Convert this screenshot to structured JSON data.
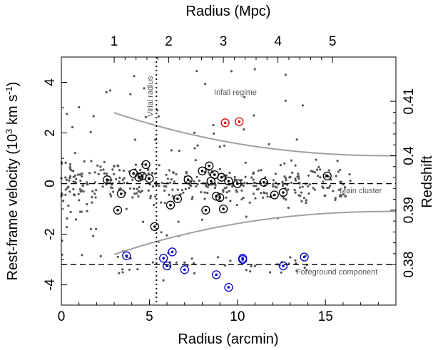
{
  "chart_data": {
    "type": "scatter",
    "title": "",
    "xlabel": "Radius (arcmin)",
    "ylabel_prefix": "Rest-frame velocity (10",
    "ylabel_sup1": "3",
    "ylabel_mid": " km s",
    "ylabel_sup2": "-1",
    "ylabel_suffix": ")",
    "ylabel_right": "Redshift",
    "xlabel_top": "Radius (Mpc)",
    "xlim": [
      0,
      19
    ],
    "ylim": [
      -4.8,
      5.0
    ],
    "x_ticks": [
      0,
      5,
      10,
      15
    ],
    "y_ticks": [
      -4,
      -2,
      0,
      2,
      4
    ],
    "top_ticks": [
      {
        "label": "1",
        "x": 3.0
      },
      {
        "label": "2",
        "x": 6.1
      },
      {
        "label": "3",
        "x": 9.2
      },
      {
        "label": "4",
        "x": 12.3
      },
      {
        "label": "5",
        "x": 15.4
      }
    ],
    "right_ticks": [
      {
        "label": "0.38",
        "y": -3.2
      },
      {
        "label": "0.39",
        "y": -1.05
      },
      {
        "label": "0.4",
        "y": 1.1
      },
      {
        "label": "0.41",
        "y": 3.25
      }
    ],
    "virial_radius": 5.4,
    "main_cluster_velocity": 0.0,
    "foreground_velocity": -3.2,
    "caustic": {
      "x_start": 3.0,
      "amplitude_at_start": 2.8,
      "amplitude_at_end": 1.1
    },
    "annotations": {
      "virial": "Virial radius",
      "infall": "Infall regime",
      "main": "Main cluster",
      "foreground": "Foreground component"
    },
    "series": [
      {
        "marker": "circled-black",
        "color": "#000000",
        "points": [
          [
            2.6,
            0.15
          ],
          [
            3.4,
            -0.4
          ],
          [
            3.2,
            -1.05
          ],
          [
            4.1,
            0.4
          ],
          [
            4.4,
            0.25
          ],
          [
            4.6,
            0.3
          ],
          [
            4.8,
            0.75
          ],
          [
            5.0,
            0.2
          ],
          [
            5.3,
            -1.7
          ],
          [
            6.2,
            -0.85
          ],
          [
            6.6,
            -0.6
          ],
          [
            7.2,
            0.15
          ],
          [
            8.0,
            0.5
          ],
          [
            8.2,
            -1.05
          ],
          [
            8.4,
            0.7
          ],
          [
            8.5,
            0.1
          ],
          [
            8.7,
            0.35
          ],
          [
            8.8,
            -0.5
          ],
          [
            9.0,
            -0.55
          ],
          [
            9.1,
            0.25
          ],
          [
            9.2,
            -1.0
          ],
          [
            9.5,
            0.1
          ],
          [
            10.0,
            0.0
          ],
          [
            11.5,
            0.05
          ],
          [
            12.1,
            -0.45
          ],
          [
            12.6,
            -0.35
          ],
          [
            15.1,
            0.3
          ]
        ]
      },
      {
        "marker": "circled-red",
        "color": "#dd0000",
        "points": [
          [
            9.3,
            2.4
          ],
          [
            10.1,
            2.45
          ]
        ]
      },
      {
        "marker": "circled-blue",
        "color": "#0000cc",
        "points": [
          [
            3.7,
            -2.85
          ],
          [
            5.8,
            -2.95
          ],
          [
            6.0,
            -3.25
          ],
          [
            6.3,
            -2.7
          ],
          [
            7.0,
            -3.4
          ],
          [
            8.8,
            -3.6
          ],
          [
            9.5,
            -4.1
          ],
          [
            10.3,
            -2.95
          ],
          [
            10.3,
            -3.0
          ],
          [
            12.6,
            -3.25
          ],
          [
            13.8,
            -2.9
          ]
        ]
      }
    ]
  },
  "colors": {
    "background_points": "#555555",
    "caustic": "#a0a0a0",
    "axes": "#000000",
    "annotation_text": "#555555"
  }
}
